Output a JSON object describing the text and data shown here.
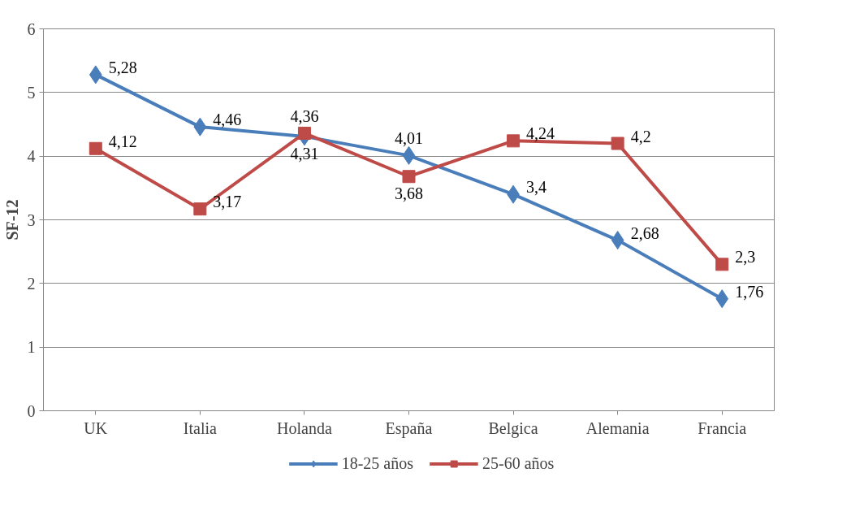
{
  "chart_data": {
    "type": "line",
    "ylabel": "SF-12",
    "categories": [
      "UK",
      "Italia",
      "Holanda",
      "España",
      "Belgica",
      "Alemania",
      "Francia"
    ],
    "series": [
      {
        "name": "18-25 años",
        "color": "#4a7ebb",
        "marker": "diamond",
        "values": [
          5.28,
          4.46,
          4.31,
          4.01,
          3.4,
          2.68,
          1.76
        ],
        "value_labels": [
          "5,28",
          "4,46",
          "4,31",
          "4,01",
          "3,4",
          "2,68",
          "1,76"
        ]
      },
      {
        "name": "25-60 años",
        "color": "#be4b48",
        "marker": "square",
        "values": [
          4.12,
          3.17,
          4.36,
          3.68,
          4.24,
          4.2,
          2.3
        ],
        "value_labels": [
          "4,12",
          "3,17",
          "4,36",
          "3,68",
          "4,24",
          "4,2",
          "2,3"
        ]
      }
    ],
    "ylim": [
      0,
      6
    ],
    "yticks": [
      0,
      1,
      2,
      3,
      4,
      5,
      6
    ],
    "grid": "y",
    "legend": "bottom"
  }
}
